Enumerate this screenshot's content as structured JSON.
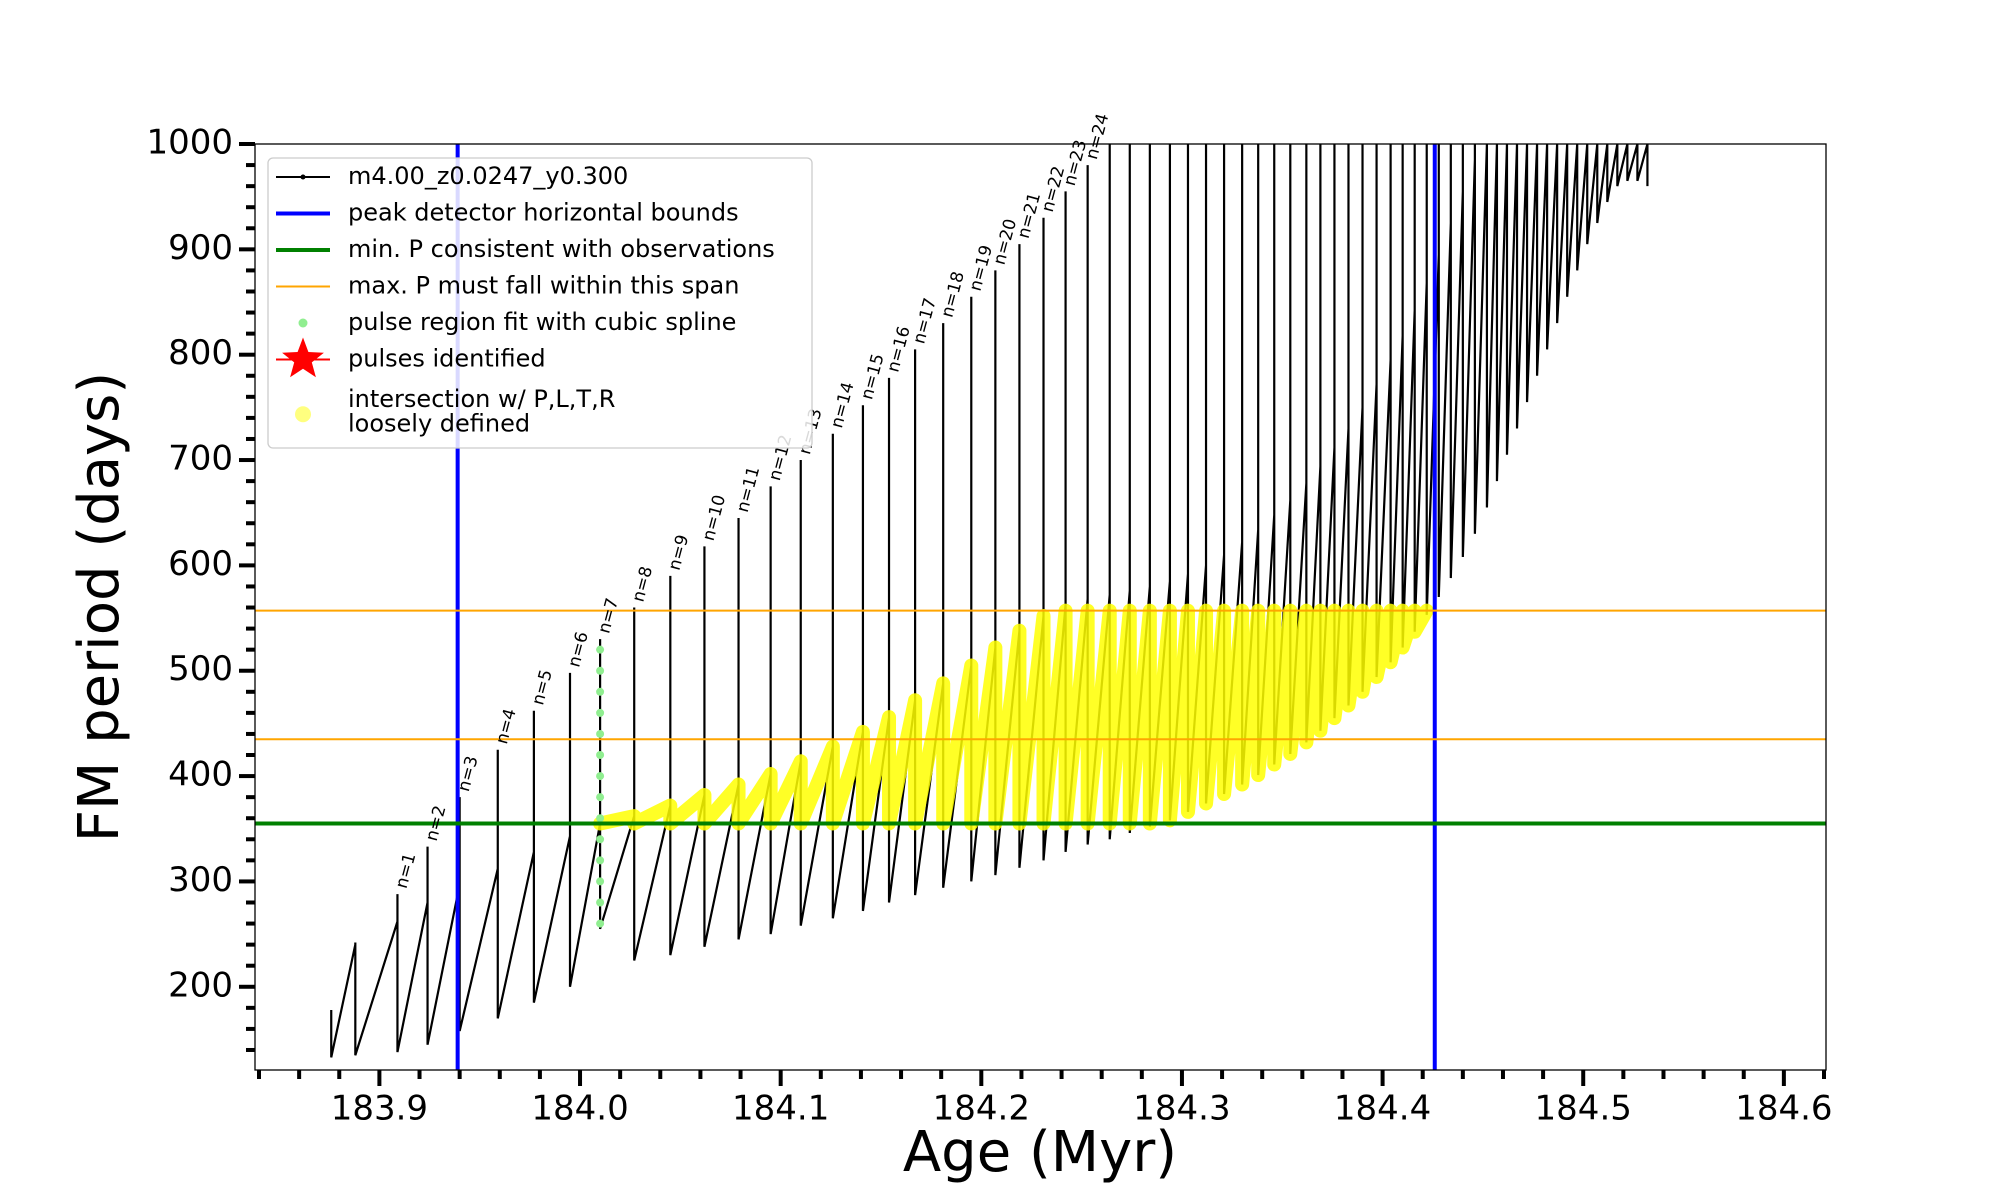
{
  "chart_data": {
    "type": "line",
    "x_label": "Age (Myr)",
    "y_label": "FM period (days)",
    "xlim": [
      183.838,
      184.621
    ],
    "ylim": [
      121,
      1000
    ],
    "xticks": [
      183.9,
      {
        "value": 184,
        "label": "184.0"
      },
      184.1,
      184.2,
      184.3,
      184.4,
      184.5,
      184.6
    ],
    "yticks": [
      200,
      300,
      400,
      500,
      600,
      700,
      800,
      900,
      1000
    ],
    "xminorticks": [
      183.84,
      183.86,
      183.88,
      183.92,
      183.94,
      183.96,
      183.98,
      184.02,
      184.04,
      184.06,
      184.08,
      184.12,
      184.14,
      184.16,
      184.18,
      184.22,
      184.24,
      184.26,
      184.28,
      184.32,
      184.34,
      184.36,
      184.38,
      184.42,
      184.44,
      184.46,
      184.48,
      184.52,
      184.54,
      184.56,
      184.58,
      184.62
    ],
    "yminorticks": [
      140,
      160,
      180,
      220,
      240,
      260,
      280,
      320,
      340,
      360,
      380,
      420,
      440,
      460,
      480,
      520,
      540,
      560,
      580,
      620,
      640,
      660,
      680,
      720,
      740,
      760,
      780,
      820,
      840,
      860,
      880,
      920,
      940,
      960,
      980
    ],
    "grid": false,
    "legend": "upper left",
    "pulse_labels": [
      "n=1",
      "n=2",
      "n=3",
      "n=4",
      "n=5",
      "n=6",
      "n=7",
      "n=8",
      "n=9",
      "n=10",
      "n=11",
      "n=12",
      "n=13",
      "n=14",
      "n=15",
      "n=16",
      "n=17",
      "n=18",
      "n=19",
      "n=20",
      "n=21",
      "n=22",
      "n=23",
      "n=24"
    ],
    "series": [
      {
        "name": "m4.00_z0.0247_y0.300",
        "color": "#000000",
        "style": "line-dot",
        "x": [
          183.876,
          183.876,
          183.888,
          183.888,
          183.888,
          183.909,
          183.909,
          183.909,
          183.924,
          183.924,
          183.924,
          183.94,
          183.94,
          183.94,
          183.959,
          183.959,
          183.959,
          183.977,
          183.977,
          183.977,
          183.995,
          183.995,
          183.995,
          184.01,
          184.01,
          184.01,
          184.027,
          184.027,
          184.027,
          184.045,
          184.045,
          184.045,
          184.062,
          184.062,
          184.062,
          184.079,
          184.079,
          184.079,
          184.095,
          184.095,
          184.095,
          184.11,
          184.11,
          184.11,
          184.126,
          184.126,
          184.126,
          184.141,
          184.141,
          184.141,
          184.154,
          184.154,
          184.154,
          184.167,
          184.167,
          184.167,
          184.181,
          184.181,
          184.181,
          184.195,
          184.195,
          184.195,
          184.207,
          184.207,
          184.207,
          184.219,
          184.219,
          184.219,
          184.231,
          184.231,
          184.231,
          184.242,
          184.242,
          184.242,
          184.253,
          184.253,
          184.253,
          184.264,
          184.264,
          184.264,
          184.274,
          184.274,
          184.274,
          184.284,
          184.284,
          184.284,
          184.294,
          184.294,
          184.294,
          184.303,
          184.303,
          184.303,
          184.312,
          184.312,
          184.312,
          184.321,
          184.321,
          184.321,
          184.33,
          184.33,
          184.33,
          184.338,
          184.338,
          184.338,
          184.346,
          184.346,
          184.346,
          184.354,
          184.354,
          184.354,
          184.362,
          184.362,
          184.362,
          184.369,
          184.369,
          184.369,
          184.376,
          184.376,
          184.376,
          184.383,
          184.383,
          184.383,
          184.39,
          184.39,
          184.39,
          184.397,
          184.397,
          184.397,
          184.404,
          184.404,
          184.404,
          184.41,
          184.41,
          184.41,
          184.416,
          184.416,
          184.416,
          184.422,
          184.422,
          184.422,
          184.428,
          184.428,
          184.428,
          184.434,
          184.434,
          184.434,
          184.44,
          184.44,
          184.44,
          184.446,
          184.446,
          184.446,
          184.452,
          184.452,
          184.452,
          184.457,
          184.457,
          184.457,
          184.462,
          184.462,
          184.462,
          184.467,
          184.467,
          184.467,
          184.472,
          184.472,
          184.472,
          184.477,
          184.477,
          184.477,
          184.482,
          184.482,
          184.482,
          184.487,
          184.487,
          184.487,
          184.492,
          184.492,
          184.492,
          184.497,
          184.497,
          184.497,
          184.502,
          184.502,
          184.502,
          184.507,
          184.507,
          184.507,
          184.512,
          184.512,
          184.512,
          184.517,
          184.517,
          184.517,
          184.522,
          184.522,
          184.522,
          184.527,
          184.527,
          184.527,
          184.532,
          184.532,
          184.532
        ],
        "values": [
          178,
          133,
          240,
          242,
          135,
          262,
          288,
          138,
          280,
          333,
          145,
          297,
          380,
          158,
          312,
          425,
          170,
          328,
          462,
          185,
          343,
          498,
          200,
          355,
          530,
          255,
          362,
          560,
          225,
          372,
          590,
          230,
          382,
          618,
          238,
          392,
          645,
          245,
          402,
          675,
          250,
          414,
          700,
          258,
          428,
          725,
          265,
          442,
          752,
          272,
          456,
          778,
          280,
          472,
          805,
          287,
          488,
          830,
          294,
          505,
          855,
          300,
          522,
          880,
          306,
          538,
          905,
          313,
          552,
          930,
          320,
          563,
          955,
          328,
          568,
          980,
          335,
          572,
          1000,
          340,
          576,
          1000,
          346,
          580,
          1000,
          352,
          585,
          1000,
          358,
          592,
          1000,
          366,
          600,
          1000,
          374,
          610,
          1000,
          383,
          622,
          1000,
          392,
          634,
          1000,
          401,
          648,
          1000,
          411,
          662,
          1000,
          421,
          678,
          1000,
          432,
          694,
          1000,
          443,
          712,
          1000,
          455,
          730,
          1000,
          467,
          750,
          1000,
          480,
          772,
          1000,
          494,
          795,
          1000,
          508,
          818,
          1000,
          522,
          842,
          1000,
          537,
          868,
          1000,
          553,
          895,
          1000,
          570,
          925,
          1000,
          588,
          955,
          1000,
          608,
          985,
          1000,
          630,
          1000,
          1000,
          655,
          1000,
          1000,
          680,
          1000,
          1000,
          705,
          1000,
          1000,
          730,
          1000,
          1000,
          755,
          1000,
          1000,
          780,
          1000,
          1000,
          805,
          1000,
          1000,
          830,
          1000,
          1000,
          855,
          1000,
          1000,
          880,
          1000,
          1000,
          905,
          1000,
          1000,
          925,
          1000,
          1000,
          945,
          1000,
          1000,
          960,
          1000,
          1000,
          965,
          1000,
          1000,
          965,
          1000,
          1000,
          960
        ]
      },
      {
        "name": "peak detector horizontal bounds",
        "color": "#0000ff",
        "style": "vline",
        "x": [
          183.939,
          184.426
        ]
      },
      {
        "name": "min. P consistent with observations",
        "color": "#008000",
        "style": "hline",
        "values": [
          355
        ]
      },
      {
        "name": "max. P must fall within this span",
        "color": "#ffa500",
        "style": "hline-thin",
        "values": [
          435,
          557
        ]
      },
      {
        "name": "pulse region fit with cubic spline",
        "color": "#90ee90",
        "style": "scatter",
        "x": [
          184.01,
          184.01,
          184.01,
          184.01,
          184.01,
          184.01,
          184.01,
          184.01,
          184.01,
          184.01,
          184.01,
          184.01,
          184.01,
          184.01
        ],
        "values": [
          260,
          280,
          300,
          320,
          340,
          360,
          380,
          400,
          420,
          440,
          460,
          480,
          500,
          520
        ]
      },
      {
        "name": "pulses identified",
        "color": "#ff0000",
        "style": "star"
      },
      {
        "name": [
          "intersection w/ P,L,T,R",
          "loosely defined"
        ],
        "color": "#ffff00",
        "style": "band",
        "x": [
          184.01,
          184.027,
          184.027,
          184.045,
          184.045,
          184.062,
          184.062,
          184.079,
          184.079,
          184.095,
          184.095,
          184.11,
          184.11,
          184.126,
          184.126,
          184.141,
          184.141,
          184.154,
          184.154,
          184.167,
          184.167,
          184.181,
          184.181,
          184.195,
          184.195,
          184.207,
          184.207,
          184.219,
          184.219,
          184.231,
          184.231,
          184.242,
          184.242,
          184.253,
          184.253,
          184.264,
          184.264,
          184.274,
          184.274,
          184.284,
          184.284,
          184.294,
          184.294,
          184.303,
          184.303,
          184.312,
          184.312,
          184.321,
          184.321,
          184.33,
          184.33,
          184.338,
          184.338,
          184.346,
          184.346,
          184.354,
          184.354,
          184.362,
          184.362,
          184.369,
          184.369,
          184.376,
          184.376,
          184.383,
          184.383,
          184.39,
          184.39,
          184.397,
          184.397,
          184.404,
          184.404,
          184.41,
          184.41,
          184.416,
          184.416,
          184.422
        ],
        "values": [
          355,
          362,
          355,
          372,
          355,
          382,
          355,
          392,
          355,
          402,
          355,
          414,
          355,
          428,
          355,
          442,
          355,
          456,
          355,
          472,
          355,
          488,
          355,
          505,
          355,
          522,
          355,
          538,
          355,
          552,
          355,
          557,
          355,
          557,
          355,
          557,
          355,
          557,
          355,
          557,
          355,
          557,
          358,
          557,
          366,
          557,
          374,
          557,
          383,
          557,
          392,
          557,
          401,
          557,
          411,
          557,
          421,
          557,
          432,
          557,
          443,
          557,
          455,
          557,
          467,
          557,
          480,
          557,
          494,
          557,
          508,
          557,
          522,
          557,
          537,
          557
        ]
      }
    ]
  }
}
